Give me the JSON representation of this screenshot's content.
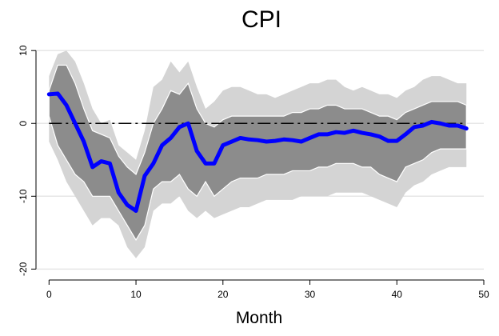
{
  "chart_data": {
    "type": "line",
    "title": "CPI",
    "xlabel": "Month",
    "ylabel": "",
    "xlim": [
      -1.5,
      50
    ],
    "ylim": [
      -21.5,
      12
    ],
    "xticks": [
      0,
      10,
      20,
      30,
      40,
      50
    ],
    "yticks": [
      10,
      0,
      -10,
      -20
    ],
    "grid": "horizontal",
    "legend": "none",
    "colors": {
      "median": "#0000ff",
      "inner_band": "#8c8c8c",
      "outer_band": "#d4d4d4",
      "zero_line": "#000000",
      "gridline": "#e6e6e6"
    },
    "bands": {
      "x": [
        0,
        1,
        2,
        3,
        4,
        5,
        6,
        7,
        8,
        9,
        10,
        11,
        12,
        13,
        14,
        15,
        16,
        17,
        18,
        19,
        20,
        21,
        22,
        23,
        24,
        25,
        26,
        27,
        28,
        29,
        30,
        31,
        32,
        33,
        34,
        35,
        36,
        37,
        38,
        39,
        40,
        41,
        42,
        43,
        44,
        45,
        46,
        47,
        48
      ],
      "outer_upper": [
        6.5,
        9.5,
        10,
        8.5,
        5.5,
        2,
        0,
        0.5,
        -3,
        -4,
        -5,
        -1,
        5,
        6,
        8.5,
        7,
        8.5,
        5,
        2,
        3,
        4.5,
        5,
        5,
        4.5,
        4,
        4,
        3.5,
        4,
        4.5,
        5,
        5.5,
        5.5,
        6,
        6,
        5,
        4.5,
        5,
        4.5,
        4,
        4,
        3.5,
        4.5,
        5,
        6,
        6.5,
        6.5,
        6,
        5.5,
        5.5
      ],
      "inner_upper": [
        4.5,
        8,
        8,
        5.5,
        2,
        -1,
        -1.5,
        -2,
        -4.5,
        -6,
        -7,
        -4,
        0,
        2,
        4.5,
        4,
        5.5,
        2,
        0,
        -0.5,
        0.5,
        1,
        1,
        1,
        1,
        1,
        1,
        1,
        1.5,
        1.5,
        2,
        2,
        2.5,
        2.5,
        2,
        2,
        2,
        1.5,
        1,
        1,
        0.5,
        1.5,
        2,
        2.5,
        3,
        3,
        3,
        3,
        2.5
      ],
      "inner_lower": [
        1,
        -3,
        -5,
        -7,
        -8,
        -10,
        -10,
        -10,
        -12,
        -14,
        -16,
        -14,
        -9,
        -8,
        -8,
        -7,
        -9,
        -10,
        -8,
        -10,
        -9,
        -8,
        -7.5,
        -7.5,
        -7.5,
        -7,
        -7,
        -7,
        -6.5,
        -6.5,
        -6.5,
        -6,
        -6,
        -5.5,
        -5.5,
        -5.5,
        -6,
        -6,
        -7,
        -7.5,
        -8,
        -6,
        -5.5,
        -5,
        -4,
        -3.5,
        -3.5,
        -3.5,
        -3.5
      ],
      "outer_lower": [
        -2.5,
        -5,
        -8,
        -10,
        -12,
        -14,
        -13,
        -13,
        -14,
        -17,
        -18.5,
        -17,
        -12,
        -11,
        -11,
        -10,
        -12,
        -13,
        -12,
        -13,
        -12.5,
        -12,
        -11.5,
        -11.5,
        -11,
        -10.5,
        -10.5,
        -10.5,
        -10.5,
        -10,
        -10,
        -10,
        -10,
        -9.5,
        -9.5,
        -9.5,
        -9.5,
        -10,
        -10.5,
        -11,
        -11.5,
        -9.5,
        -8.5,
        -8,
        -7,
        -6.5,
        -6,
        -6,
        -6
      ]
    },
    "series": [
      {
        "role": "median",
        "x": [
          0,
          1,
          2,
          3,
          4,
          5,
          6,
          7,
          8,
          9,
          10,
          11,
          12,
          13,
          14,
          15,
          16,
          17,
          18,
          19,
          20,
          21,
          22,
          23,
          24,
          25,
          26,
          27,
          28,
          29,
          30,
          31,
          32,
          33,
          34,
          35,
          36,
          37,
          38,
          39,
          40,
          41,
          42,
          43,
          44,
          45,
          46,
          47,
          48
        ],
        "values": [
          4,
          4.1,
          2.5,
          0,
          -2.5,
          -6,
          -5.2,
          -5.5,
          -9.5,
          -11.2,
          -12,
          -7.2,
          -5.5,
          -3,
          -2,
          -0.5,
          0,
          -3.8,
          -5.5,
          -5.5,
          -3,
          -2.5,
          -2,
          -2.2,
          -2.3,
          -2.5,
          -2.4,
          -2.2,
          -2.3,
          -2.5,
          -2,
          -1.5,
          -1.5,
          -1.2,
          -1.3,
          -1,
          -1.3,
          -1.5,
          -1.8,
          -2.4,
          -2.4,
          -1.5,
          -0.5,
          -0.3,
          0.2,
          0,
          -0.3,
          -0.3,
          -0.7
        ]
      },
      {
        "role": "zero-line",
        "x": [
          0,
          48
        ],
        "values": [
          0,
          0
        ]
      }
    ]
  }
}
